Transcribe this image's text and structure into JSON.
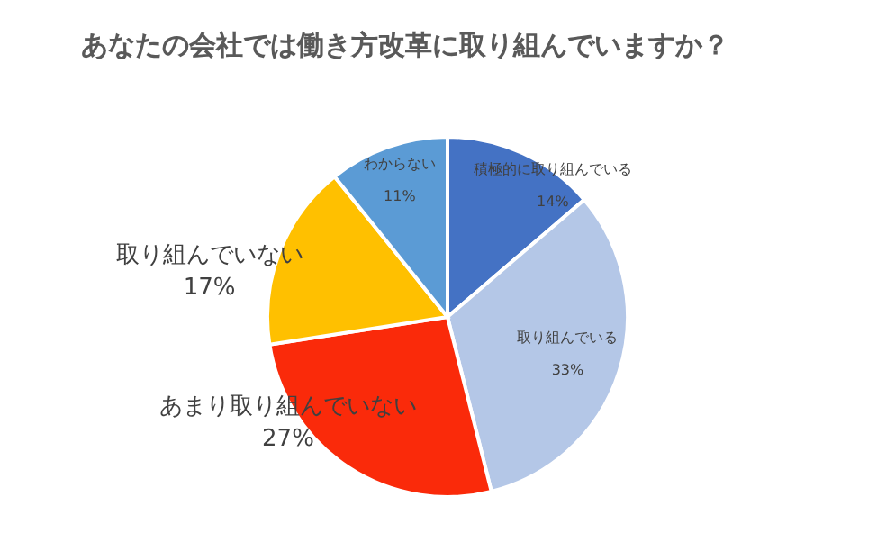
{
  "chart_data": {
    "type": "pie",
    "title": "あなたの会社では働き方改革に取り組んでいますか？",
    "categories": [
      "積極的に取り組んでいる",
      "取り組んでいる",
      "あまり取り組んでいない",
      "取り組んでいない",
      "わからない"
    ],
    "values": [
      14,
      33,
      27,
      17,
      11
    ],
    "value_labels": [
      "14%",
      "33%",
      "27%",
      "17%",
      "11%"
    ],
    "colors": [
      "#4472c4",
      "#b4c7e7",
      "#fa2a0a",
      "#ffc000",
      "#5b9bd5"
    ]
  }
}
